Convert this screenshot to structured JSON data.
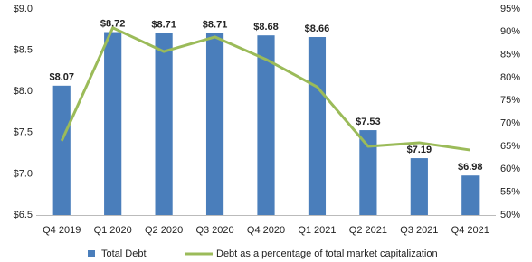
{
  "chart_data": {
    "type": "bar",
    "categories": [
      "Q4 2019",
      "Q1 2020",
      "Q2 2020",
      "Q3 2020",
      "Q4 2020",
      "Q1 2021",
      "Q2 2021",
      "Q3 2021",
      "Q4 2021"
    ],
    "series": [
      {
        "name": "Total Debt",
        "type": "bar",
        "color": "#4a7ebb",
        "values": [
          8.07,
          8.72,
          8.71,
          8.71,
          8.68,
          8.66,
          7.53,
          7.19,
          6.98
        ],
        "value_labels": [
          "$8.07",
          "$8.72",
          "$8.71",
          "$8.71",
          "$8.68",
          "$8.66",
          "$7.53",
          "$7.19",
          "$6.98"
        ]
      },
      {
        "name": "Debt as a percentage of total market capitalization",
        "type": "line",
        "color": "#9bbb59",
        "axis": "y2",
        "values": [
          66.2,
          90.9,
          85.7,
          88.9,
          84.0,
          78.0,
          65.0,
          65.8,
          64.2
        ]
      }
    ],
    "ylim": [
      6.5,
      9.0
    ],
    "yticks": [
      {
        "value": 6.5,
        "label": "$6.5"
      },
      {
        "value": 7.0,
        "label": "$7.0"
      },
      {
        "value": 7.5,
        "label": "$7.5"
      },
      {
        "value": 8.0,
        "label": "$8.0"
      },
      {
        "value": 8.5,
        "label": "$8.5"
      },
      {
        "value": 9.0,
        "label": "$9.0"
      }
    ],
    "y2lim": [
      50,
      95
    ],
    "y2ticks": [
      {
        "value": 50,
        "label": "50%"
      },
      {
        "value": 55,
        "label": "55%"
      },
      {
        "value": 60,
        "label": "60%"
      },
      {
        "value": 65,
        "label": "65%"
      },
      {
        "value": 70,
        "label": "70%"
      },
      {
        "value": 75,
        "label": "75%"
      },
      {
        "value": 80,
        "label": "80%"
      },
      {
        "value": 85,
        "label": "85%"
      },
      {
        "value": 90,
        "label": "90%"
      },
      {
        "value": 95,
        "label": "95%"
      }
    ],
    "grid": false,
    "legend": "bottom"
  }
}
